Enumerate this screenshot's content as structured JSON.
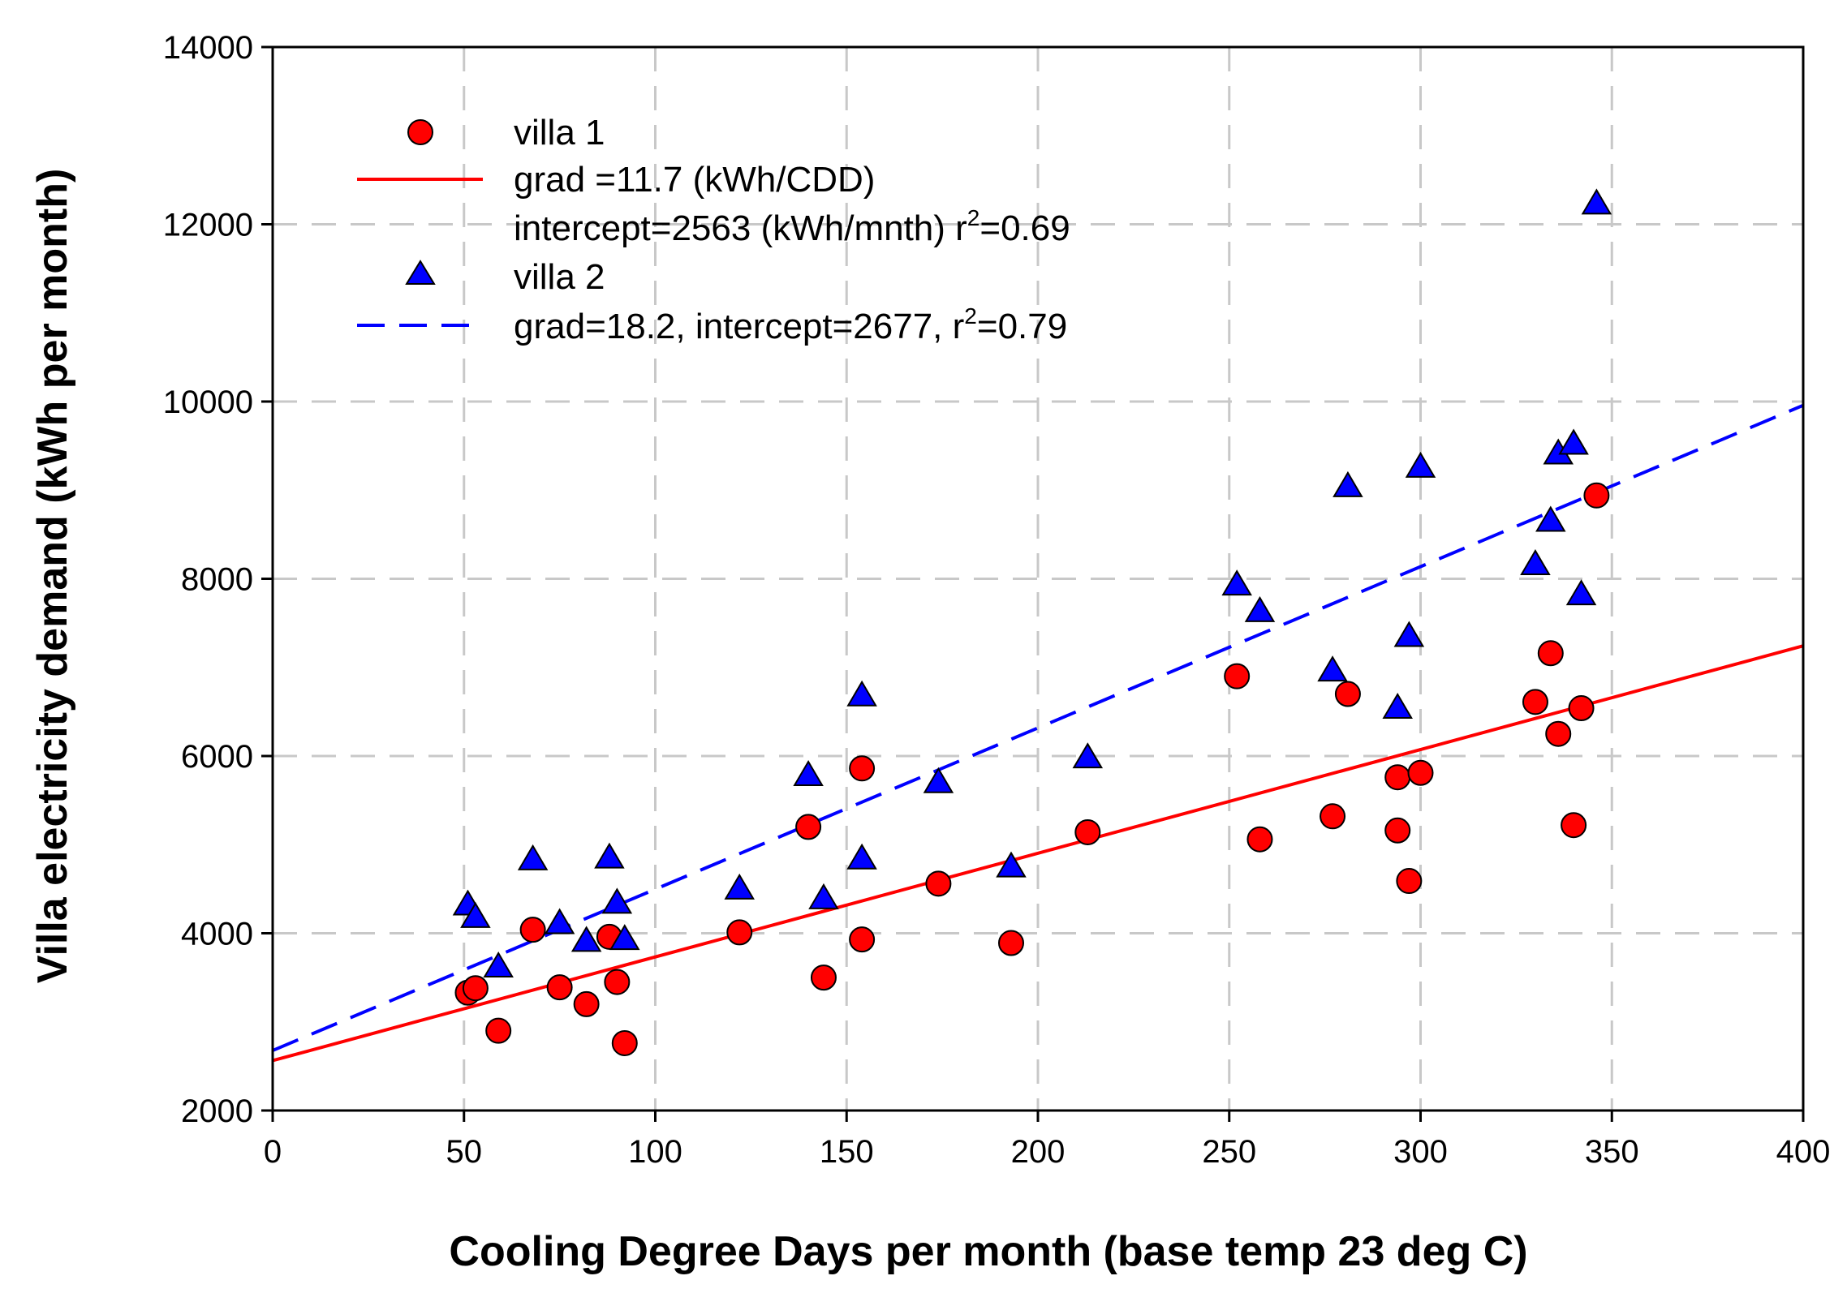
{
  "chart_data": {
    "type": "scatter",
    "title": "",
    "xlabel": "Cooling Degree Days per month (base temp 23 deg C)",
    "ylabel": "Villa electricity demand (kWh per month)",
    "xlim": [
      0,
      400
    ],
    "ylim": [
      2000,
      14000
    ],
    "xticks": [
      "0",
      "50",
      "100",
      "150",
      "200",
      "250",
      "300",
      "350",
      "400"
    ],
    "yticks": [
      "2000",
      "4000",
      "6000",
      "8000",
      "10000",
      "12000",
      "14000"
    ],
    "grid": true,
    "legend_position": "top-left",
    "series": [
      {
        "name": "villa 1",
        "marker": "circle",
        "color": "#ff0000",
        "points": [
          [
            51,
            3330
          ],
          [
            53,
            3380
          ],
          [
            59,
            2900
          ],
          [
            68,
            4040
          ],
          [
            75,
            3390
          ],
          [
            82,
            3200
          ],
          [
            88,
            3960
          ],
          [
            90,
            3450
          ],
          [
            92,
            2760
          ],
          [
            122,
            4010
          ],
          [
            140,
            5200
          ],
          [
            144,
            3500
          ],
          [
            154,
            3930
          ],
          [
            154,
            5860
          ],
          [
            174,
            4560
          ],
          [
            193,
            3890
          ],
          [
            213,
            5140
          ],
          [
            252,
            6900
          ],
          [
            258,
            5060
          ],
          [
            277,
            5320
          ],
          [
            281,
            6700
          ],
          [
            294,
            5160
          ],
          [
            294,
            5760
          ],
          [
            297,
            4590
          ],
          [
            300,
            5810
          ],
          [
            330,
            6610
          ],
          [
            334,
            7160
          ],
          [
            336,
            6250
          ],
          [
            340,
            5220
          ],
          [
            342,
            6540
          ],
          [
            346,
            8940
          ]
        ]
      },
      {
        "name": "villa 2",
        "marker": "triangle",
        "color": "#0000ff",
        "points": [
          [
            51,
            4320
          ],
          [
            53,
            4180
          ],
          [
            59,
            3620
          ],
          [
            68,
            4830
          ],
          [
            75,
            4110
          ],
          [
            82,
            3910
          ],
          [
            88,
            4850
          ],
          [
            90,
            4340
          ],
          [
            92,
            3930
          ],
          [
            122,
            4500
          ],
          [
            140,
            5780
          ],
          [
            144,
            4390
          ],
          [
            154,
            4840
          ],
          [
            154,
            6680
          ],
          [
            174,
            5700
          ],
          [
            193,
            4750
          ],
          [
            213,
            5980
          ],
          [
            252,
            7930
          ],
          [
            258,
            7630
          ],
          [
            277,
            6960
          ],
          [
            281,
            9040
          ],
          [
            294,
            6540
          ],
          [
            297,
            7350
          ],
          [
            300,
            9260
          ],
          [
            330,
            8160
          ],
          [
            334,
            8650
          ],
          [
            336,
            9410
          ],
          [
            340,
            9520
          ],
          [
            342,
            7820
          ],
          [
            346,
            12230
          ]
        ]
      }
    ],
    "fits": [
      {
        "series": "villa 1",
        "style": "solid",
        "color": "#ff0000",
        "gradient": 11.7,
        "intercept": 2563,
        "r2": 0.69
      },
      {
        "series": "villa 2",
        "style": "dashed",
        "color": "#0000ff",
        "gradient": 18.2,
        "intercept": 2677,
        "r2": 0.79
      }
    ],
    "legend": {
      "villa1_label": "villa 1",
      "fit1_line1": "grad =11.7 (kWh/CDD)",
      "fit1_line2_main": "intercept=2563 (kWh/mnth) r",
      "fit1_line2_sup": "2",
      "fit1_line2_tail": "=0.69",
      "villa2_label": "villa 2",
      "fit2_main": "grad=18.2, intercept=2677, r",
      "fit2_sup": "2",
      "fit2_tail": "=0.79"
    }
  }
}
